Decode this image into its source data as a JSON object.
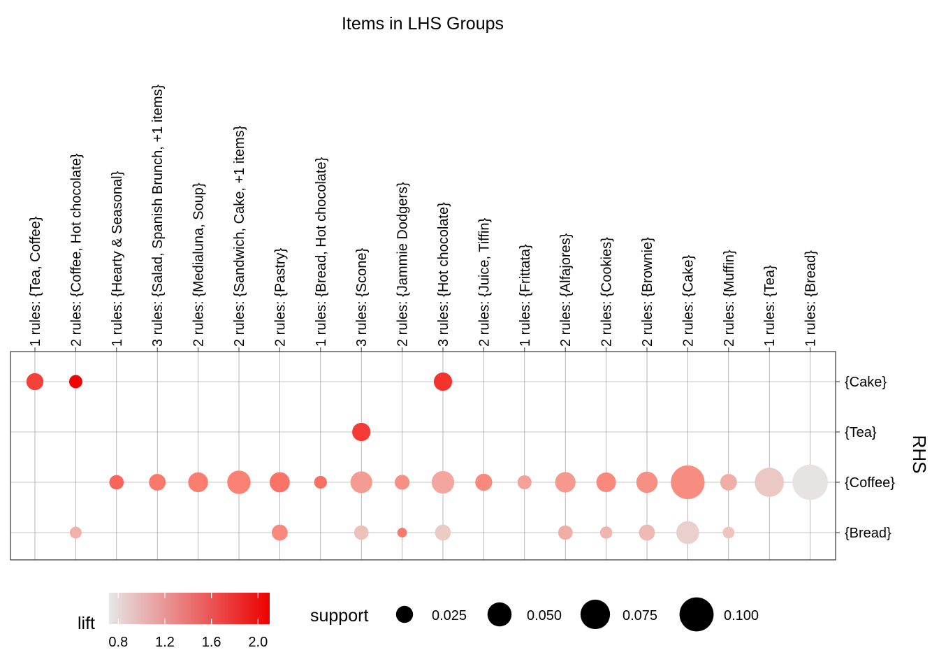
{
  "chart_data": {
    "type": "bubble-matrix",
    "title": "Items in LHS Groups",
    "ylabel": "RHS",
    "columns": [
      "1 rules: {Tea, Coffee}",
      "2 rules: {Coffee, Hot chocolate}",
      "1 rules: {Hearty & Seasonal}",
      "3 rules: {Salad, Spanish Brunch, +1 items}",
      "2 rules: {Medialuna, Soup}",
      "2 rules: {Sandwich, Cake, +1 items}",
      "2 rules: {Pastry}",
      "1 rules: {Bread, Hot chocolate}",
      "3 rules: {Scone}",
      "2 rules: {Jammie Dodgers}",
      "3 rules: {Hot chocolate}",
      "2 rules: {Juice, Tiffin}",
      "1 rules: {Frittata}",
      "2 rules: {Alfajores}",
      "2 rules: {Cookies}",
      "2 rules: {Brownie}",
      "2 rules: {Cake}",
      "2 rules: {Muffin}",
      "1 rules: {Tea}",
      "1 rules: {Bread}"
    ],
    "rows": [
      "{Cake}",
      "{Tea}",
      "{Coffee}",
      "{Bread}"
    ],
    "points": [
      {
        "col": 0,
        "row": "{Cake}",
        "support": 0.025,
        "lift": 1.75
      },
      {
        "col": 1,
        "row": "{Cake}",
        "support": 0.015,
        "lift": 2.08
      },
      {
        "col": 10,
        "row": "{Cake}",
        "support": 0.029,
        "lift": 1.82
      },
      {
        "col": 8,
        "row": "{Tea}",
        "support": 0.029,
        "lift": 1.78
      },
      {
        "col": 2,
        "row": "{Coffee}",
        "support": 0.018,
        "lift": 1.55
      },
      {
        "col": 3,
        "row": "{Coffee}",
        "support": 0.024,
        "lift": 1.45
      },
      {
        "col": 4,
        "row": "{Coffee}",
        "support": 0.034,
        "lift": 1.42
      },
      {
        "col": 5,
        "row": "{Coffee}",
        "support": 0.047,
        "lift": 1.4
      },
      {
        "col": 6,
        "row": "{Coffee}",
        "support": 0.035,
        "lift": 1.48
      },
      {
        "col": 7,
        "row": "{Coffee}",
        "support": 0.014,
        "lift": 1.5
      },
      {
        "col": 8,
        "row": "{Coffee}",
        "support": 0.041,
        "lift": 1.22
      },
      {
        "col": 9,
        "row": "{Coffee}",
        "support": 0.019,
        "lift": 1.3
      },
      {
        "col": 10,
        "row": "{Coffee}",
        "support": 0.044,
        "lift": 1.15
      },
      {
        "col": 11,
        "row": "{Coffee}",
        "support": 0.025,
        "lift": 1.35
      },
      {
        "col": 12,
        "row": "{Coffee}",
        "support": 0.017,
        "lift": 1.18
      },
      {
        "col": 13,
        "row": "{Coffee}",
        "support": 0.036,
        "lift": 1.25
      },
      {
        "col": 14,
        "row": "{Coffee}",
        "support": 0.033,
        "lift": 1.35
      },
      {
        "col": 15,
        "row": "{Coffee}",
        "support": 0.039,
        "lift": 1.3
      },
      {
        "col": 16,
        "row": "{Coffee}",
        "support": 0.098,
        "lift": 1.32
      },
      {
        "col": 17,
        "row": "{Coffee}",
        "support": 0.024,
        "lift": 1.1
      },
      {
        "col": 18,
        "row": "{Coffee}",
        "support": 0.073,
        "lift": 0.92
      },
      {
        "col": 19,
        "row": "{Coffee}",
        "support": 0.108,
        "lift": 0.74
      },
      {
        "col": 1,
        "row": "{Bread}",
        "support": 0.012,
        "lift": 1.08
      },
      {
        "col": 6,
        "row": "{Bread}",
        "support": 0.022,
        "lift": 1.35
      },
      {
        "col": 8,
        "row": "{Bread}",
        "support": 0.018,
        "lift": 0.98
      },
      {
        "col": 9,
        "row": "{Bread}",
        "support": 0.008,
        "lift": 1.45
      },
      {
        "col": 10,
        "row": "{Bread}",
        "support": 0.022,
        "lift": 0.9
      },
      {
        "col": 13,
        "row": "{Bread}",
        "support": 0.018,
        "lift": 1.1
      },
      {
        "col": 14,
        "row": "{Bread}",
        "support": 0.013,
        "lift": 1.05
      },
      {
        "col": 15,
        "row": "{Bread}",
        "support": 0.022,
        "lift": 1.02
      },
      {
        "col": 16,
        "row": "{Bread}",
        "support": 0.045,
        "lift": 0.87
      },
      {
        "col": 17,
        "row": "{Bread}",
        "support": 0.012,
        "lift": 0.95
      }
    ],
    "legend": {
      "lift_title": "lift",
      "lift_ticks": [
        "0.8",
        "1.2",
        "1.6",
        "2.0"
      ],
      "lift_tick_values": [
        0.8,
        1.2,
        1.6,
        2.0
      ],
      "lift_range": [
        0.72,
        2.1
      ],
      "lift_low_color": "#e6e6e6",
      "lift_high_color": "#ee0000",
      "support_title": "support",
      "support_labels": [
        "0.025",
        "0.050",
        "0.075",
        "0.100"
      ],
      "support_values": [
        0.025,
        0.05,
        0.075,
        0.1
      ],
      "support_color": "#000000"
    }
  }
}
